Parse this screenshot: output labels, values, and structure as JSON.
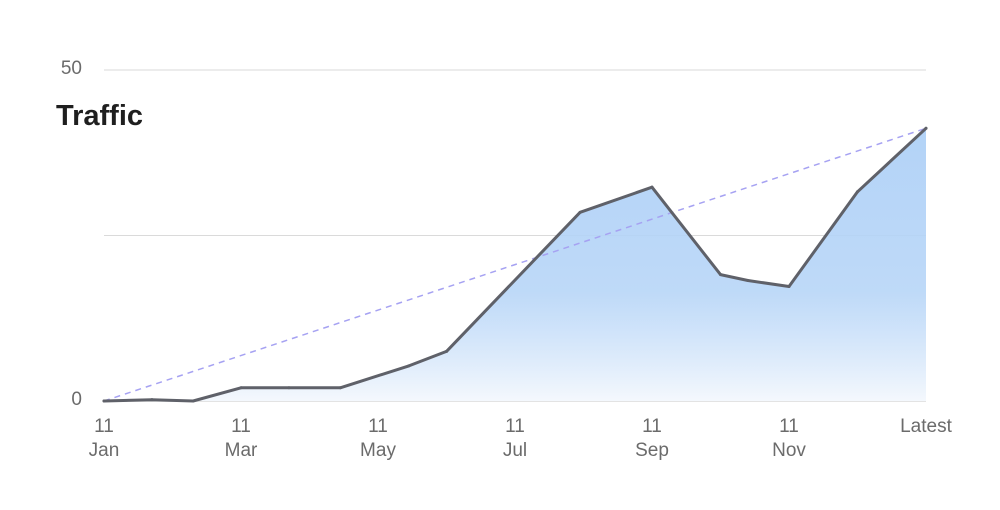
{
  "chart_data": {
    "type": "area",
    "title": "Traffic",
    "xlabel": "",
    "ylabel": "",
    "ylim": [
      0,
      50
    ],
    "y_ticks": [
      {
        "value": 0,
        "label": "0"
      },
      {
        "value": 25,
        "label": ""
      },
      {
        "value": 50,
        "label": "50"
      }
    ],
    "x_ticks": [
      {
        "x": 0,
        "line1": "11",
        "line2": "Jan"
      },
      {
        "x": 2,
        "line1": "11",
        "line2": "Mar"
      },
      {
        "x": 4,
        "line1": "11",
        "line2": "May"
      },
      {
        "x": 6,
        "line1": "11",
        "line2": "Jul"
      },
      {
        "x": 8,
        "line1": "11",
        "line2": "Sep"
      },
      {
        "x": 10,
        "line1": "11",
        "line2": "Nov"
      },
      {
        "x": 12,
        "line1": "Latest",
        "line2": ""
      }
    ],
    "xlim": [
      0,
      12
    ],
    "series": [
      {
        "x": [
          0,
          0.7,
          1.3,
          2,
          2.7,
          3.45,
          4.45,
          5,
          6.95,
          8,
          9,
          9.4,
          10,
          11,
          12
        ],
        "values": [
          0,
          0.2,
          0,
          2,
          2,
          2,
          5.3,
          7.5,
          28.5,
          32.3,
          19.1,
          18.2,
          17.3,
          31.6,
          41.2
        ]
      }
    ],
    "trendline": {
      "from": [
        0,
        0
      ],
      "to": [
        12,
        41.2
      ],
      "style": "dashed"
    },
    "grid": true,
    "colors": {
      "line": "#5f6169",
      "fill_top": "#b3d3f7",
      "fill_bottom": "#f4f8fd",
      "trend": "#a6a2f2",
      "grid": "#dadada",
      "text": "#6b6b6b"
    }
  }
}
